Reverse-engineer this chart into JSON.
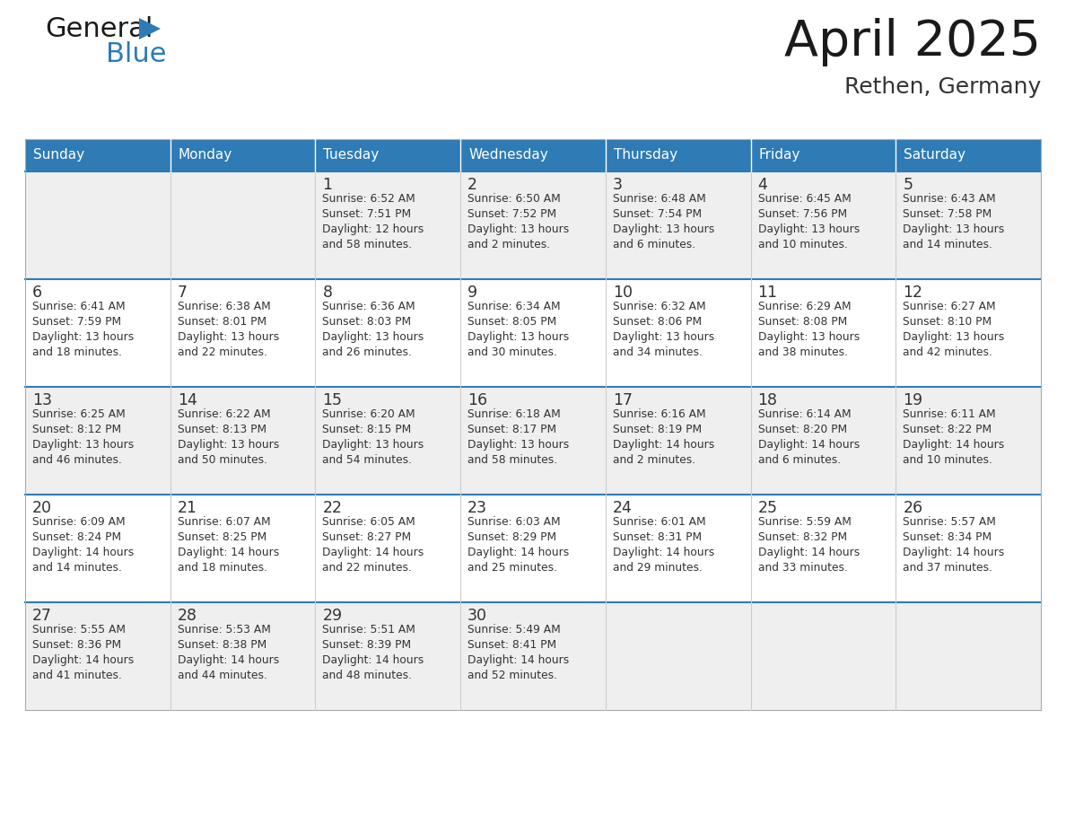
{
  "title": "April 2025",
  "subtitle": "Rethen, Germany",
  "header_bg": "#2E7BB5",
  "header_text_color": "#FFFFFF",
  "days_of_week": [
    "Sunday",
    "Monday",
    "Tuesday",
    "Wednesday",
    "Thursday",
    "Friday",
    "Saturday"
  ],
  "cell_bg_odd": "#EFEFEF",
  "cell_bg_even": "#FFFFFF",
  "cell_border": "#CCCCCC",
  "text_color": "#333333",
  "title_color": "#1A1A1A",
  "subtitle_color": "#333333",
  "logo_general_color": "#1A1A1A",
  "logo_blue_color": "#2E7BB5",
  "weeks": [
    [
      {
        "day": null,
        "info": null
      },
      {
        "day": null,
        "info": null
      },
      {
        "day": 1,
        "info": "Sunrise: 6:52 AM\nSunset: 7:51 PM\nDaylight: 12 hours\nand 58 minutes."
      },
      {
        "day": 2,
        "info": "Sunrise: 6:50 AM\nSunset: 7:52 PM\nDaylight: 13 hours\nand 2 minutes."
      },
      {
        "day": 3,
        "info": "Sunrise: 6:48 AM\nSunset: 7:54 PM\nDaylight: 13 hours\nand 6 minutes."
      },
      {
        "day": 4,
        "info": "Sunrise: 6:45 AM\nSunset: 7:56 PM\nDaylight: 13 hours\nand 10 minutes."
      },
      {
        "day": 5,
        "info": "Sunrise: 6:43 AM\nSunset: 7:58 PM\nDaylight: 13 hours\nand 14 minutes."
      }
    ],
    [
      {
        "day": 6,
        "info": "Sunrise: 6:41 AM\nSunset: 7:59 PM\nDaylight: 13 hours\nand 18 minutes."
      },
      {
        "day": 7,
        "info": "Sunrise: 6:38 AM\nSunset: 8:01 PM\nDaylight: 13 hours\nand 22 minutes."
      },
      {
        "day": 8,
        "info": "Sunrise: 6:36 AM\nSunset: 8:03 PM\nDaylight: 13 hours\nand 26 minutes."
      },
      {
        "day": 9,
        "info": "Sunrise: 6:34 AM\nSunset: 8:05 PM\nDaylight: 13 hours\nand 30 minutes."
      },
      {
        "day": 10,
        "info": "Sunrise: 6:32 AM\nSunset: 8:06 PM\nDaylight: 13 hours\nand 34 minutes."
      },
      {
        "day": 11,
        "info": "Sunrise: 6:29 AM\nSunset: 8:08 PM\nDaylight: 13 hours\nand 38 minutes."
      },
      {
        "day": 12,
        "info": "Sunrise: 6:27 AM\nSunset: 8:10 PM\nDaylight: 13 hours\nand 42 minutes."
      }
    ],
    [
      {
        "day": 13,
        "info": "Sunrise: 6:25 AM\nSunset: 8:12 PM\nDaylight: 13 hours\nand 46 minutes."
      },
      {
        "day": 14,
        "info": "Sunrise: 6:22 AM\nSunset: 8:13 PM\nDaylight: 13 hours\nand 50 minutes."
      },
      {
        "day": 15,
        "info": "Sunrise: 6:20 AM\nSunset: 8:15 PM\nDaylight: 13 hours\nand 54 minutes."
      },
      {
        "day": 16,
        "info": "Sunrise: 6:18 AM\nSunset: 8:17 PM\nDaylight: 13 hours\nand 58 minutes."
      },
      {
        "day": 17,
        "info": "Sunrise: 6:16 AM\nSunset: 8:19 PM\nDaylight: 14 hours\nand 2 minutes."
      },
      {
        "day": 18,
        "info": "Sunrise: 6:14 AM\nSunset: 8:20 PM\nDaylight: 14 hours\nand 6 minutes."
      },
      {
        "day": 19,
        "info": "Sunrise: 6:11 AM\nSunset: 8:22 PM\nDaylight: 14 hours\nand 10 minutes."
      }
    ],
    [
      {
        "day": 20,
        "info": "Sunrise: 6:09 AM\nSunset: 8:24 PM\nDaylight: 14 hours\nand 14 minutes."
      },
      {
        "day": 21,
        "info": "Sunrise: 6:07 AM\nSunset: 8:25 PM\nDaylight: 14 hours\nand 18 minutes."
      },
      {
        "day": 22,
        "info": "Sunrise: 6:05 AM\nSunset: 8:27 PM\nDaylight: 14 hours\nand 22 minutes."
      },
      {
        "day": 23,
        "info": "Sunrise: 6:03 AM\nSunset: 8:29 PM\nDaylight: 14 hours\nand 25 minutes."
      },
      {
        "day": 24,
        "info": "Sunrise: 6:01 AM\nSunset: 8:31 PM\nDaylight: 14 hours\nand 29 minutes."
      },
      {
        "day": 25,
        "info": "Sunrise: 5:59 AM\nSunset: 8:32 PM\nDaylight: 14 hours\nand 33 minutes."
      },
      {
        "day": 26,
        "info": "Sunrise: 5:57 AM\nSunset: 8:34 PM\nDaylight: 14 hours\nand 37 minutes."
      }
    ],
    [
      {
        "day": 27,
        "info": "Sunrise: 5:55 AM\nSunset: 8:36 PM\nDaylight: 14 hours\nand 41 minutes."
      },
      {
        "day": 28,
        "info": "Sunrise: 5:53 AM\nSunset: 8:38 PM\nDaylight: 14 hours\nand 44 minutes."
      },
      {
        "day": 29,
        "info": "Sunrise: 5:51 AM\nSunset: 8:39 PM\nDaylight: 14 hours\nand 48 minutes."
      },
      {
        "day": 30,
        "info": "Sunrise: 5:49 AM\nSunset: 8:41 PM\nDaylight: 14 hours\nand 52 minutes."
      },
      {
        "day": null,
        "info": null
      },
      {
        "day": null,
        "info": null
      },
      {
        "day": null,
        "info": null
      }
    ]
  ],
  "fig_width": 11.88,
  "fig_height": 9.18,
  "dpi": 100
}
